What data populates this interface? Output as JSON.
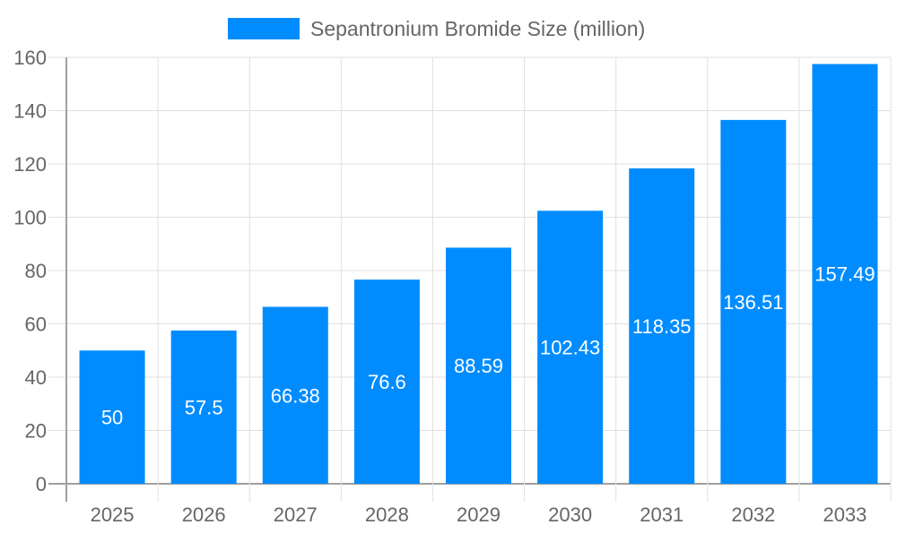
{
  "chart_data": {
    "type": "bar",
    "title": "",
    "xlabel": "",
    "ylabel": "",
    "categories": [
      "2025",
      "2026",
      "2027",
      "2028",
      "2029",
      "2030",
      "2031",
      "2032",
      "2033"
    ],
    "series": [
      {
        "name": "Sepantronium Bromide Size (million)",
        "values": [
          50,
          57.5,
          66.38,
          76.6,
          88.59,
          102.43,
          118.35,
          136.51,
          157.49
        ]
      }
    ],
    "ylim": [
      0,
      160
    ],
    "yticks": [
      0,
      20,
      40,
      60,
      80,
      100,
      120,
      140,
      160
    ],
    "grid": true,
    "legend_position": "top",
    "data_labels": true,
    "colors": {
      "bar": "#008cff",
      "grid": "#e0e0e0",
      "axis": "#a0a0a0",
      "text": "#666666",
      "label": "#ffffff"
    }
  }
}
